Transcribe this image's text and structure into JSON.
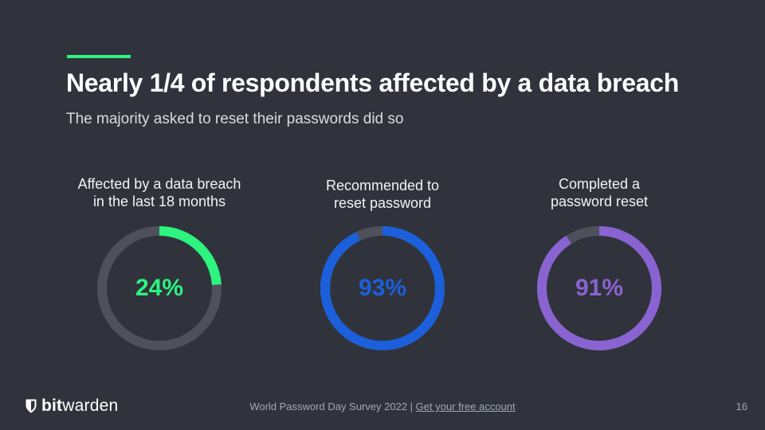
{
  "slide": {
    "title": "Nearly 1/4 of respondents affected by a data breach",
    "subtitle": "The majority asked to reset their passwords did so"
  },
  "colors": {
    "background": "#30333c",
    "accent": "#2cf47f",
    "track": "#4e515b"
  },
  "chart_data": [
    {
      "type": "pie",
      "label_lines": [
        "Affected by a data breach",
        "in the last 18 months"
      ],
      "value": 24,
      "display": "24%",
      "color": "#2cf47f"
    },
    {
      "type": "pie",
      "label_lines": [
        "Recommended to",
        "reset password"
      ],
      "value": 93,
      "display": "93%",
      "color": "#1b5fdb"
    },
    {
      "type": "pie",
      "label_lines": [
        "Completed a",
        "password reset"
      ],
      "value": 91,
      "display": "91%",
      "color": "#8a63d2"
    }
  ],
  "footer": {
    "logo_bold": "bit",
    "logo_rest": "warden",
    "logo_icon": "shield-icon",
    "survey_text": "World Password Day Survey 2022 | ",
    "link_text": "Get your free account",
    "page_number": "16"
  }
}
